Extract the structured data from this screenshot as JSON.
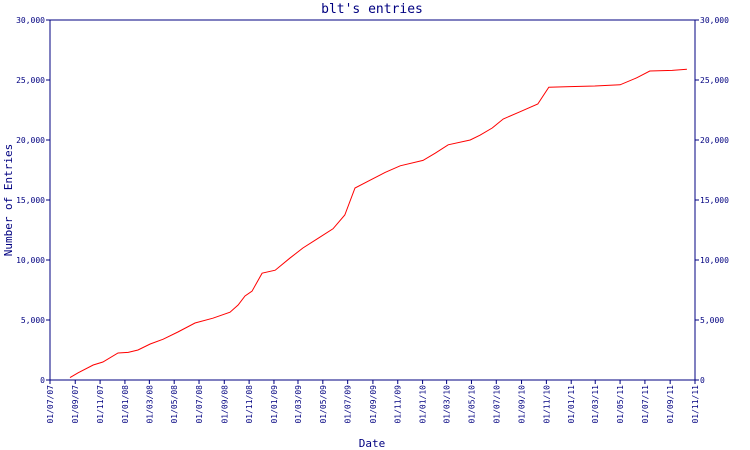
{
  "chart_data": {
    "type": "line",
    "title": "blt's entries",
    "x_label": "Date",
    "y_label": "Number of Entries",
    "x": [
      "2007-08-19",
      "2007-09-08",
      "2007-10-15",
      "2007-11-08",
      "2007-12-15",
      "2008-01-09",
      "2008-02-02",
      "2008-03-03",
      "2008-04-04",
      "2008-05-10",
      "2008-06-21",
      "2008-08-04",
      "2008-09-15",
      "2008-10-05",
      "2008-10-22",
      "2008-11-08",
      "2008-12-03",
      "2009-01-04",
      "2009-02-09",
      "2009-03-13",
      "2009-04-19",
      "2009-05-26",
      "2009-06-24",
      "2009-07-19",
      "2009-08-25",
      "2009-10-01",
      "2009-11-07",
      "2010-01-02",
      "2010-02-01",
      "2010-03-05",
      "2010-04-28",
      "2010-05-22",
      "2010-06-21",
      "2010-07-18",
      "2010-08-28",
      "2010-10-11",
      "2010-11-07",
      "2010-12-29",
      "2011-02-28",
      "2011-05-01",
      "2011-06-12",
      "2011-07-13",
      "2011-09-06",
      "2011-10-12"
    ],
    "series": [
      {
        "color": "#ff0000",
        "values": [
          200,
          600,
          1250,
          1500,
          2250,
          2300,
          2500,
          3000,
          3400,
          4000,
          4750,
          5150,
          5650,
          6250,
          7000,
          7400,
          8900,
          9150,
          10150,
          11000,
          11800,
          12600,
          13750,
          16000,
          16650,
          17300,
          17850,
          18300,
          18900,
          19600,
          20000,
          20400,
          21000,
          21750,
          22350,
          23000,
          24400,
          24450,
          24500,
          24600,
          25200,
          25750,
          25800,
          25900
        ]
      }
    ],
    "xlim": [
      "2007-07-01",
      "2011-11-01"
    ],
    "xticks": [
      {
        "value": "2007-07-01",
        "label": "01/07/07"
      },
      {
        "value": "2007-09-01",
        "label": "01/09/07"
      },
      {
        "value": "2007-11-01",
        "label": "01/11/07"
      },
      {
        "value": "2008-01-01",
        "label": "01/01/08"
      },
      {
        "value": "2008-03-01",
        "label": "01/03/08"
      },
      {
        "value": "2008-05-01",
        "label": "01/05/08"
      },
      {
        "value": "2008-07-01",
        "label": "01/07/08"
      },
      {
        "value": "2008-09-01",
        "label": "01/09/08"
      },
      {
        "value": "2008-11-01",
        "label": "01/11/08"
      },
      {
        "value": "2009-01-01",
        "label": "01/01/09"
      },
      {
        "value": "2009-03-01",
        "label": "01/03/09"
      },
      {
        "value": "2009-05-01",
        "label": "01/05/09"
      },
      {
        "value": "2009-07-01",
        "label": "01/07/09"
      },
      {
        "value": "2009-09-01",
        "label": "01/09/09"
      },
      {
        "value": "2009-11-01",
        "label": "01/11/09"
      },
      {
        "value": "2010-01-01",
        "label": "01/01/10"
      },
      {
        "value": "2010-03-01",
        "label": "01/03/10"
      },
      {
        "value": "2010-05-01",
        "label": "01/05/10"
      },
      {
        "value": "2010-07-01",
        "label": "01/07/10"
      },
      {
        "value": "2010-09-01",
        "label": "01/09/10"
      },
      {
        "value": "2010-11-01",
        "label": "01/11/10"
      },
      {
        "value": "2011-01-01",
        "label": "01/01/11"
      },
      {
        "value": "2011-03-01",
        "label": "01/03/11"
      },
      {
        "value": "2011-05-01",
        "label": "01/05/11"
      },
      {
        "value": "2011-07-01",
        "label": "01/07/11"
      },
      {
        "value": "2011-09-01",
        "label": "01/09/11"
      },
      {
        "value": "2011-11-01",
        "label": "01/11/11"
      }
    ],
    "ylim": [
      0,
      30000
    ],
    "yticks": [
      0,
      {
        "value": 5000,
        "label": "5,000"
      },
      {
        "value": 10000,
        "label": "10,000"
      },
      {
        "value": 15000,
        "label": "15,000"
      },
      {
        "value": 20000,
        "label": "20,000"
      },
      {
        "value": 25000,
        "label": "25,000"
      },
      {
        "value": 30000,
        "label": "30,000"
      }
    ],
    "axis_color": "#000080"
  }
}
